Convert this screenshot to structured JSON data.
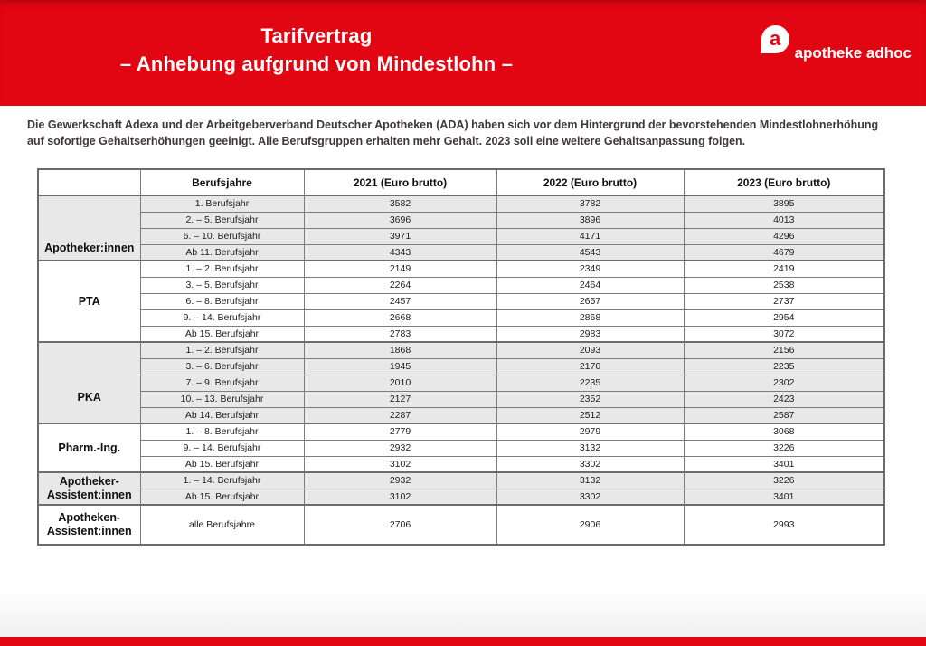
{
  "header": {
    "title_line1": "Tarifvertrag",
    "title_line2": "– Anhebung aufgrund von Mindestlohn –"
  },
  "brand": {
    "logo_letter": "a",
    "name": "apotheke adhoc"
  },
  "intro": {
    "line1": "Die Gewerkschaft Adexa und der Arbeitgeberverband Deutscher Apotheken (ADA) haben sich vor dem Hintergrund der bevorstehenden Mindestlohnerhöhung",
    "line2": "auf sofortige Gehaltserhöhungen geeinigt. Alle Berufsgruppen erhalten mehr Gehalt. 2023 soll eine weitere Gehaltsanpassung folgen."
  },
  "colors": {
    "brand_red": "#e20613",
    "row_shade": "#e8e8e8"
  },
  "table": {
    "columns": [
      "",
      "Berufsjahre",
      "2021 (Euro brutto)",
      "2022 (Euro brutto)",
      "2023 (Euro brutto)"
    ],
    "groups": [
      {
        "name": "Apotheker:innen",
        "rows": [
          {
            "years": "1. Berufsjahr",
            "values": [
              3582,
              3782,
              3895
            ]
          },
          {
            "years": "2. – 5. Berufsjahr",
            "values": [
              3696,
              3896,
              4013
            ]
          },
          {
            "years": "6. – 10. Berufsjahr",
            "values": [
              3971,
              4171,
              4296
            ]
          },
          {
            "years": "Ab 11. Berufsjahr",
            "values": [
              4343,
              4543,
              4679
            ]
          }
        ]
      },
      {
        "name": "PTA",
        "rows": [
          {
            "years": "1. – 2. Berufsjahr",
            "values": [
              2149,
              2349,
              2419
            ]
          },
          {
            "years": "3. – 5. Berufsjahr",
            "values": [
              2264,
              2464,
              2538
            ]
          },
          {
            "years": "6. – 8. Berufsjahr",
            "values": [
              2457,
              2657,
              2737
            ]
          },
          {
            "years": "9. – 14. Berufsjahr",
            "values": [
              2668,
              2868,
              2954
            ]
          },
          {
            "years": "Ab 15. Berufsjahr",
            "values": [
              2783,
              2983,
              3072
            ]
          }
        ]
      },
      {
        "name": "PKA",
        "rows": [
          {
            "years": "1. – 2. Berufsjahr",
            "values": [
              1868,
              2093,
              2156
            ]
          },
          {
            "years": "3. – 6. Berufsjahr",
            "values": [
              1945,
              2170,
              2235
            ]
          },
          {
            "years": "7. – 9. Berufsjahr",
            "values": [
              2010,
              2235,
              2302
            ]
          },
          {
            "years": "10. – 13. Berufsjahr",
            "values": [
              2127,
              2352,
              2423
            ]
          },
          {
            "years": "Ab 14. Berufsjahr",
            "values": [
              2287,
              2512,
              2587
            ]
          }
        ]
      },
      {
        "name": "Pharm.-Ing.",
        "rows": [
          {
            "years": "1. – 8. Berufsjahr",
            "values": [
              2779,
              2979,
              3068
            ]
          },
          {
            "years": "9. – 14. Berufsjahr",
            "values": [
              2932,
              3132,
              3226
            ]
          },
          {
            "years": "Ab 15. Berufsjahr",
            "values": [
              3102,
              3302,
              3401
            ]
          }
        ]
      },
      {
        "name": "Apotheker-\nAssistent:innen",
        "rows": [
          {
            "years": "1. – 14. Berufsjahr",
            "values": [
              2932,
              3132,
              3226
            ]
          },
          {
            "years": "Ab 15. Berufsjahr",
            "values": [
              3102,
              3302,
              3401
            ]
          }
        ]
      },
      {
        "name": "Apotheken-\nAssistent:innen",
        "rows": [
          {
            "years": "alle Berufsjahre",
            "values": [
              2706,
              2906,
              2993
            ]
          }
        ]
      }
    ]
  }
}
